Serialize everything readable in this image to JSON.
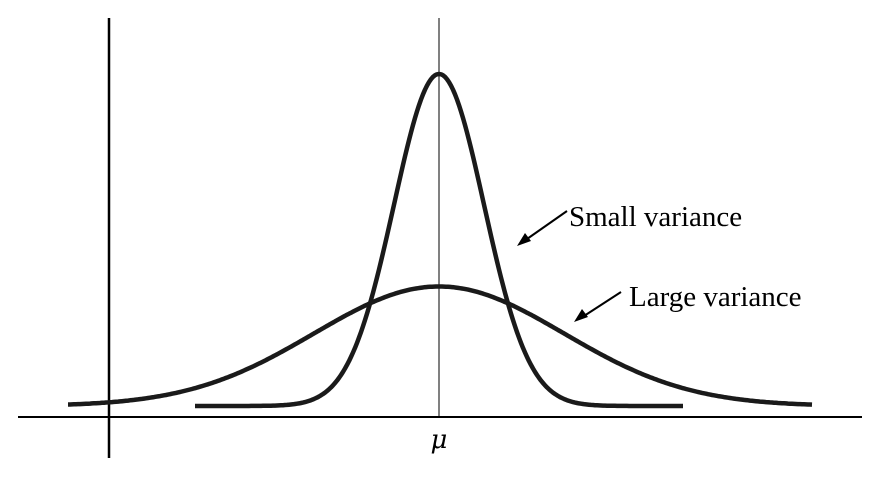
{
  "diagram": {
    "mean_label": "μ",
    "annotations": [
      {
        "id": "small",
        "text": "Small variance"
      },
      {
        "id": "large",
        "text": "Large variance"
      }
    ],
    "curves": [
      {
        "id": "small",
        "relative_peak": 1.0,
        "relative_spread": 1.0
      },
      {
        "id": "large",
        "relative_peak": 0.36,
        "relative_spread": 2.78
      }
    ],
    "colors": {
      "curve": "#1a1a1a",
      "axis": "#000000",
      "background": "#ffffff"
    }
  }
}
